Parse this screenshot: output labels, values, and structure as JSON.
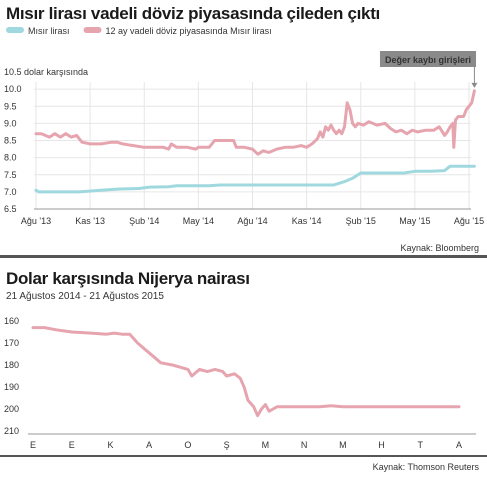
{
  "charts": [
    {
      "title": "Mısır lirası vadeli döviz piyasasında çileden çıktı",
      "source": "Kaynak: Bloomberg"
    },
    {
      "title": "Dolar karşısında Nijerya nairası",
      "subtitle": "21 Ağustos 2014 - 21 Ağustos 2015",
      "source": "Kaynak: Thomson Reuters"
    }
  ],
  "chart_data": [
    {
      "type": "line",
      "title": "Mısır lirası vadeli döviz piyasasında çileden çıktı",
      "ylabel": "10.5 dolar karşısında",
      "ylim": [
        6.5,
        10.5
      ],
      "yticks": [
        "6.5",
        "7.0",
        "7.5",
        "8.0",
        "8.5",
        "9.0",
        "9.5",
        "10.0",
        "10.5"
      ],
      "xticks": [
        "Ağu '13",
        "Kas '13",
        "Şub '14",
        "May '14",
        "Ağu '14",
        "Kas '14",
        "Şub '15",
        "May '15",
        "Ağu '15"
      ],
      "grid": true,
      "legend": "top-left",
      "annotation": "Değer kaybı girişleri",
      "series": [
        {
          "name": "Mısır lirası",
          "color": "#9fd8de",
          "points": [
            [
              0,
              7.05
            ],
            [
              0.05,
              7.0
            ],
            [
              0.15,
              7.0
            ],
            [
              0.5,
              7.0
            ],
            [
              0.8,
              7.0
            ],
            [
              1.2,
              7.05
            ],
            [
              1.5,
              7.08
            ],
            [
              1.9,
              7.1
            ],
            [
              2.1,
              7.14
            ],
            [
              2.45,
              7.15
            ],
            [
              2.6,
              7.18
            ],
            [
              2.8,
              7.18
            ],
            [
              3.2,
              7.18
            ],
            [
              3.4,
              7.2
            ],
            [
              3.6,
              7.2
            ],
            [
              3.8,
              7.2
            ],
            [
              4.5,
              7.2
            ],
            [
              5.0,
              7.2
            ],
            [
              5.3,
              7.2
            ],
            [
              5.5,
              7.2
            ],
            [
              5.7,
              7.3
            ],
            [
              5.85,
              7.4
            ],
            [
              5.95,
              7.5
            ],
            [
              6.0,
              7.55
            ],
            [
              6.5,
              7.55
            ],
            [
              6.8,
              7.55
            ],
            [
              7.0,
              7.6
            ],
            [
              7.3,
              7.6
            ],
            [
              7.55,
              7.62
            ],
            [
              7.65,
              7.75
            ],
            [
              7.9,
              7.75
            ],
            [
              8.1,
              7.75
            ]
          ]
        },
        {
          "name": "12 ay vadeli döviz piyasasında Mısır lirası",
          "color": "#e6a4ae",
          "points": [
            [
              0,
              8.7
            ],
            [
              0.1,
              8.7
            ],
            [
              0.25,
              8.6
            ],
            [
              0.35,
              8.7
            ],
            [
              0.45,
              8.6
            ],
            [
              0.55,
              8.7
            ],
            [
              0.65,
              8.6
            ],
            [
              0.75,
              8.65
            ],
            [
              0.85,
              8.45
            ],
            [
              1.0,
              8.4
            ],
            [
              1.2,
              8.4
            ],
            [
              1.4,
              8.45
            ],
            [
              1.5,
              8.45
            ],
            [
              1.6,
              8.4
            ],
            [
              1.8,
              8.35
            ],
            [
              2.0,
              8.3
            ],
            [
              2.2,
              8.3
            ],
            [
              2.35,
              8.3
            ],
            [
              2.45,
              8.25
            ],
            [
              2.5,
              8.4
            ],
            [
              2.6,
              8.3
            ],
            [
              2.8,
              8.3
            ],
            [
              2.95,
              8.25
            ],
            [
              3.0,
              8.3
            ],
            [
              3.2,
              8.3
            ],
            [
              3.3,
              8.5
            ],
            [
              3.5,
              8.5
            ],
            [
              3.65,
              8.5
            ],
            [
              3.7,
              8.3
            ],
            [
              3.85,
              8.3
            ],
            [
              4.0,
              8.25
            ],
            [
              4.1,
              8.1
            ],
            [
              4.2,
              8.2
            ],
            [
              4.3,
              8.15
            ],
            [
              4.45,
              8.25
            ],
            [
              4.6,
              8.3
            ],
            [
              4.75,
              8.3
            ],
            [
              4.9,
              8.35
            ],
            [
              5.0,
              8.3
            ],
            [
              5.1,
              8.4
            ],
            [
              5.2,
              8.55
            ],
            [
              5.25,
              8.75
            ],
            [
              5.3,
              8.6
            ],
            [
              5.35,
              8.9
            ],
            [
              5.4,
              8.8
            ],
            [
              5.45,
              8.95
            ],
            [
              5.5,
              8.8
            ],
            [
              5.55,
              8.7
            ],
            [
              5.6,
              8.8
            ],
            [
              5.65,
              8.7
            ],
            [
              5.7,
              8.9
            ],
            [
              5.75,
              9.6
            ],
            [
              5.8,
              9.4
            ],
            [
              5.85,
              9.0
            ],
            [
              5.9,
              8.9
            ],
            [
              5.95,
              9.0
            ],
            [
              6.05,
              8.95
            ],
            [
              6.15,
              9.05
            ],
            [
              6.3,
              8.95
            ],
            [
              6.45,
              9.0
            ],
            [
              6.55,
              8.85
            ],
            [
              6.65,
              8.75
            ],
            [
              6.75,
              8.8
            ],
            [
              6.85,
              8.7
            ],
            [
              6.95,
              8.8
            ],
            [
              7.05,
              8.75
            ],
            [
              7.2,
              8.8
            ],
            [
              7.35,
              8.8
            ],
            [
              7.45,
              8.9
            ],
            [
              7.55,
              8.65
            ],
            [
              7.6,
              8.75
            ],
            [
              7.65,
              8.9
            ],
            [
              7.7,
              9.0
            ],
            [
              7.72,
              8.3
            ],
            [
              7.75,
              9.1
            ],
            [
              7.8,
              9.2
            ],
            [
              7.9,
              9.2
            ],
            [
              7.95,
              9.4
            ],
            [
              8.0,
              9.5
            ],
            [
              8.05,
              9.6
            ],
            [
              8.1,
              9.95
            ]
          ]
        }
      ]
    },
    {
      "type": "line",
      "title": "Dolar karşısında Nijerya nairası",
      "subtitle": "21 Ağustos 2014 - 21 Ağustos 2015",
      "ylim": [
        160,
        210
      ],
      "y_inverted": true,
      "yticks": [
        "160",
        "170",
        "180",
        "190",
        "200",
        "210"
      ],
      "xticks": [
        "E",
        "E",
        "K",
        "A",
        "O",
        "Ş",
        "M",
        "N",
        "M",
        "H",
        "T",
        "A"
      ],
      "grid": false,
      "series": [
        {
          "color": "#e6a4ae",
          "points": [
            [
              0,
              163
            ],
            [
              0.3,
              163
            ],
            [
              0.6,
              164
            ],
            [
              1.0,
              165
            ],
            [
              1.5,
              165.5
            ],
            [
              1.9,
              166
            ],
            [
              2.1,
              165.5
            ],
            [
              2.3,
              166
            ],
            [
              2.5,
              166
            ],
            [
              2.7,
              170
            ],
            [
              2.9,
              173
            ],
            [
              3.1,
              176
            ],
            [
              3.3,
              179
            ],
            [
              3.6,
              180
            ],
            [
              3.8,
              181
            ],
            [
              4.0,
              182
            ],
            [
              4.1,
              185
            ],
            [
              4.3,
              182
            ],
            [
              4.5,
              183
            ],
            [
              4.7,
              182
            ],
            [
              4.9,
              183
            ],
            [
              5.0,
              185
            ],
            [
              5.2,
              184
            ],
            [
              5.35,
              186
            ],
            [
              5.45,
              190
            ],
            [
              5.55,
              196
            ],
            [
              5.7,
              199
            ],
            [
              5.8,
              203
            ],
            [
              5.9,
              200
            ],
            [
              6.0,
              198
            ],
            [
              6.1,
              201
            ],
            [
              6.2,
              200
            ],
            [
              6.3,
              199
            ],
            [
              6.5,
              199
            ],
            [
              6.8,
              199
            ],
            [
              7.0,
              199
            ],
            [
              7.4,
              199
            ],
            [
              7.7,
              198.5
            ],
            [
              8.0,
              199
            ],
            [
              8.3,
              199
            ],
            [
              8.6,
              199
            ],
            [
              9.0,
              199
            ],
            [
              9.5,
              199
            ],
            [
              10.0,
              199
            ],
            [
              10.5,
              199
            ],
            [
              11.0,
              199
            ]
          ]
        }
      ]
    }
  ]
}
